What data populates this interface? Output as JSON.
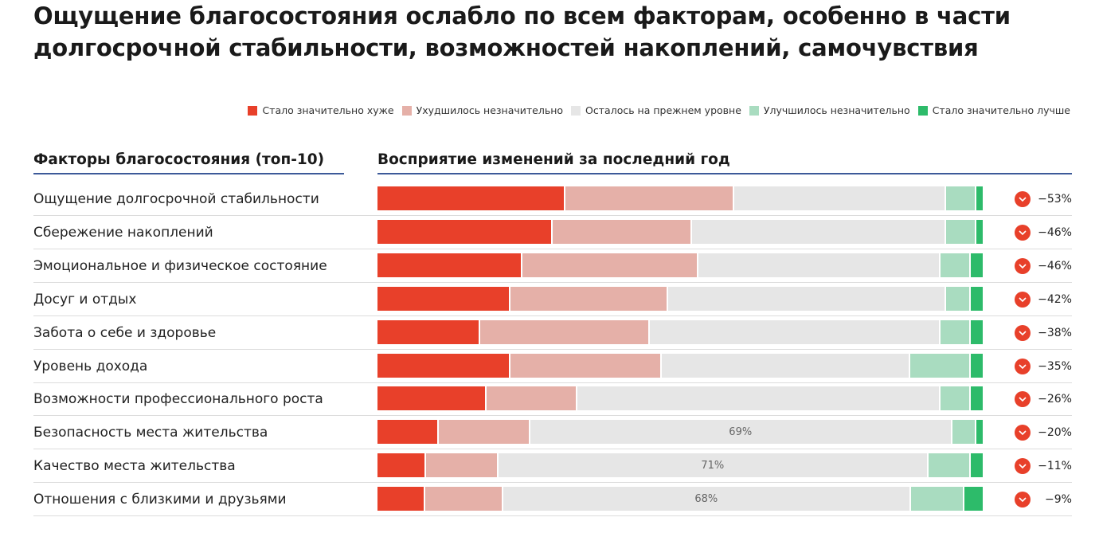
{
  "title": "Ощущение благосостояния ослабло по всем факторам, особенно в части долгосрочной стабильности, возможностей накоплений, самочувствия",
  "chart_data": {
    "type": "bar",
    "orientation": "horizontal",
    "stacked": true,
    "unit": "%",
    "left_header": "Факторы благосостояния (топ-10)",
    "right_header": "Восприятие изменений за последний год",
    "legend_position": "top-right",
    "series": [
      {
        "name": "Стало значительно хуже",
        "color": "#e8402a",
        "values": [
          31,
          29,
          24,
          22,
          17,
          22,
          18,
          10,
          8,
          8
        ]
      },
      {
        "name": "Ухудшилось незначительно",
        "color": "#e5b0a8",
        "values": [
          28,
          23,
          29,
          26,
          28,
          25,
          15,
          15,
          12,
          13
        ]
      },
      {
        "name": "Осталось на прежнем уровне",
        "color": "#e6e6e6",
        "values": [
          35,
          42,
          40,
          46,
          48,
          41,
          60,
          69,
          71,
          68
        ]
      },
      {
        "name": "Улучшилось незначительно",
        "color": "#a9dcc0",
        "values": [
          5,
          5,
          5,
          4,
          5,
          10,
          5,
          4,
          7,
          9
        ]
      },
      {
        "name": "Стало значительно лучше",
        "color": "#2dbb6a",
        "values": [
          1,
          1,
          2,
          2,
          2,
          2,
          2,
          1,
          2,
          3
        ]
      }
    ],
    "categories": [
      "Ощущение долгосрочной стабильности",
      "Сбережение накоплений",
      "Эмоциональное и физическое состояние",
      "Досуг и отдых",
      "Забота о себе и здоровье",
      "Уровень дохода",
      "Возможности профессионального роста",
      "Безопасность места жительства",
      "Качество места жительства",
      "Отношения с близкими и друзьями"
    ],
    "data_labels": {
      "2": {
        "7": "69%",
        "8": "71%",
        "9": "68%"
      }
    },
    "net": [
      "−53%",
      "−46%",
      "−46%",
      "−42%",
      "−38%",
      "−35%",
      "−26%",
      "−20%",
      "−11%",
      "−9%"
    ],
    "net_icon": "chevron-down-circle-icon"
  }
}
